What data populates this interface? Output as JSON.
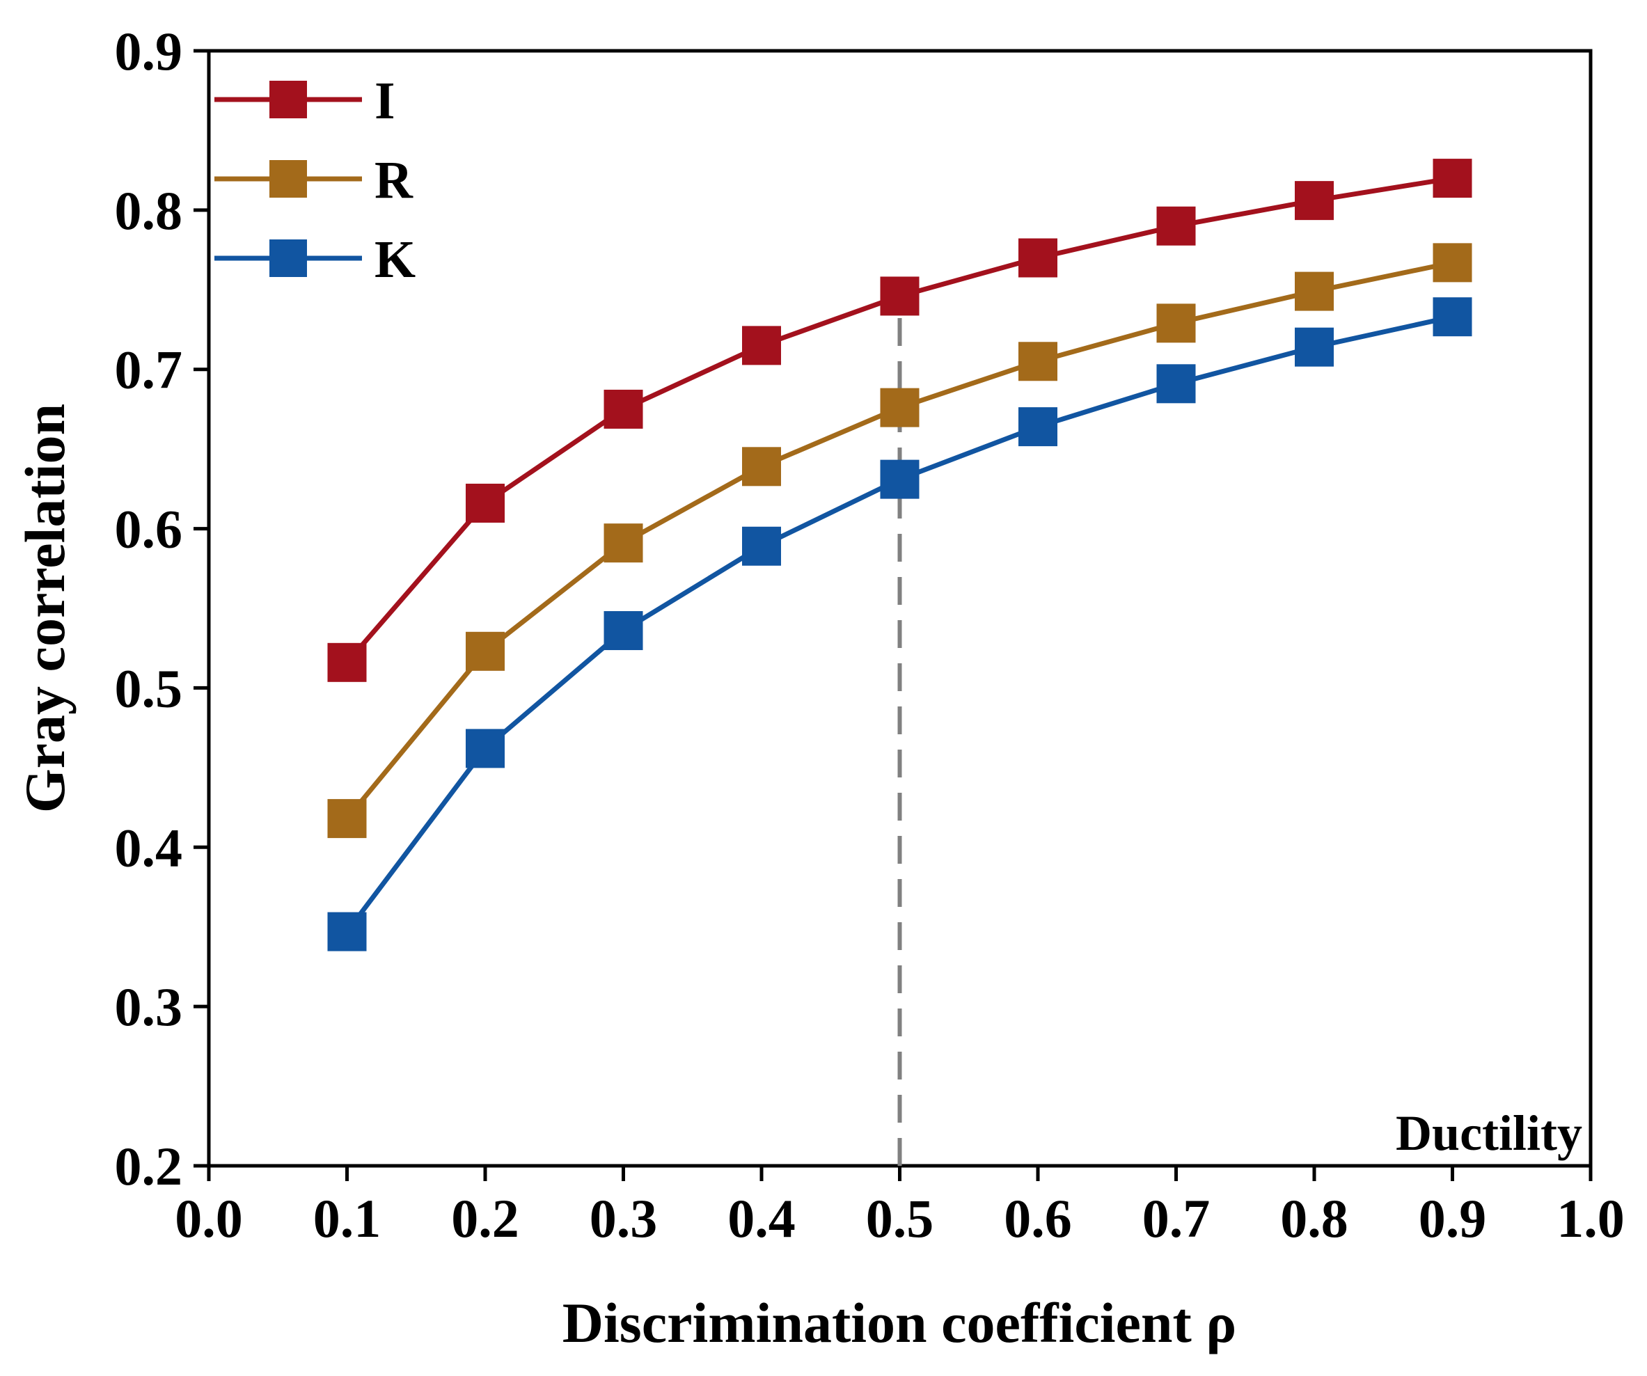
{
  "chart_data": {
    "type": "line",
    "title": "",
    "xlabel": "Discrimination coefficient ρ",
    "ylabel": "Gray correlation",
    "xlim": [
      0.0,
      1.0
    ],
    "ylim": [
      0.2,
      0.9
    ],
    "x_ticks": [
      "0.0",
      "0.1",
      "0.2",
      "0.3",
      "0.4",
      "0.5",
      "0.6",
      "0.7",
      "0.8",
      "0.9",
      "1.0"
    ],
    "y_ticks": [
      "0.2",
      "0.3",
      "0.4",
      "0.5",
      "0.6",
      "0.7",
      "0.8",
      "0.9"
    ],
    "x": [
      0.1,
      0.2,
      0.3,
      0.4,
      0.5,
      0.6,
      0.7,
      0.8,
      0.9
    ],
    "series": [
      {
        "name": "I",
        "color": "#a3111d",
        "values": [
          0.516,
          0.616,
          0.675,
          0.715,
          0.746,
          0.77,
          0.79,
          0.806,
          0.82
        ]
      },
      {
        "name": "R",
        "color": "#a36a1a",
        "values": [
          0.418,
          0.523,
          0.591,
          0.639,
          0.676,
          0.705,
          0.729,
          0.749,
          0.767
        ]
      },
      {
        "name": "K",
        "color": "#1155a1",
        "values": [
          0.347,
          0.462,
          0.536,
          0.589,
          0.631,
          0.664,
          0.691,
          0.714,
          0.733
        ]
      }
    ],
    "reference_line": {
      "x": 0.5,
      "style": "dashed",
      "color": "#808080"
    },
    "annotation": "Ductility",
    "legend": {
      "position": "top-left"
    },
    "grid": false
  }
}
